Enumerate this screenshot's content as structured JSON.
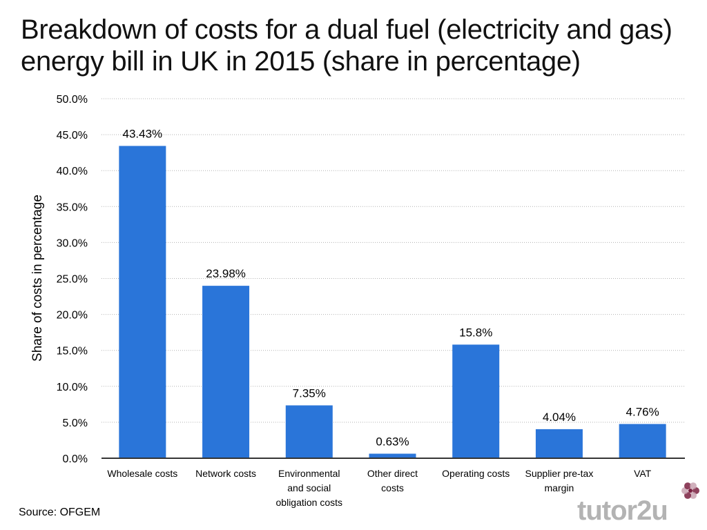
{
  "title": "Breakdown of costs for a dual fuel (electricity and gas) energy bill in UK in 2015 (share in percentage)",
  "source": "Source: OFGEM",
  "logo_text": "tutor2u",
  "colors": {
    "bar": "#2a75d9",
    "grid": "#b0b0b0",
    "axis": "#333333",
    "logo": "#b3b3b3",
    "flower": "#7a2040"
  },
  "chart_data": {
    "type": "bar",
    "title": "Breakdown of costs for a dual fuel (electricity and gas) energy bill in UK in 2015 (share in percentage)",
    "xlabel": "",
    "ylabel": "Share of costs in percentage",
    "ylim": [
      0,
      50
    ],
    "yticks": [
      "0.0%",
      "5.0%",
      "10.0%",
      "15.0%",
      "20.0%",
      "25.0%",
      "30.0%",
      "35.0%",
      "40.0%",
      "45.0%",
      "50.0%"
    ],
    "ytick_values": [
      0,
      5,
      10,
      15,
      20,
      25,
      30,
      35,
      40,
      45,
      50
    ],
    "grid": true,
    "categories": [
      [
        "Wholesale costs"
      ],
      [
        "Network costs"
      ],
      [
        "Environmental",
        "and social",
        "obligation costs"
      ],
      [
        "Other direct",
        "costs"
      ],
      [
        "Operating costs"
      ],
      [
        "Supplier pre-tax",
        "margin"
      ],
      [
        "VAT"
      ]
    ],
    "values": [
      43.43,
      23.98,
      7.35,
      0.63,
      15.8,
      4.04,
      4.76
    ],
    "data_labels": [
      "43.43%",
      "23.98%",
      "7.35%",
      "0.63%",
      "15.8%",
      "4.04%",
      "4.76%"
    ]
  }
}
